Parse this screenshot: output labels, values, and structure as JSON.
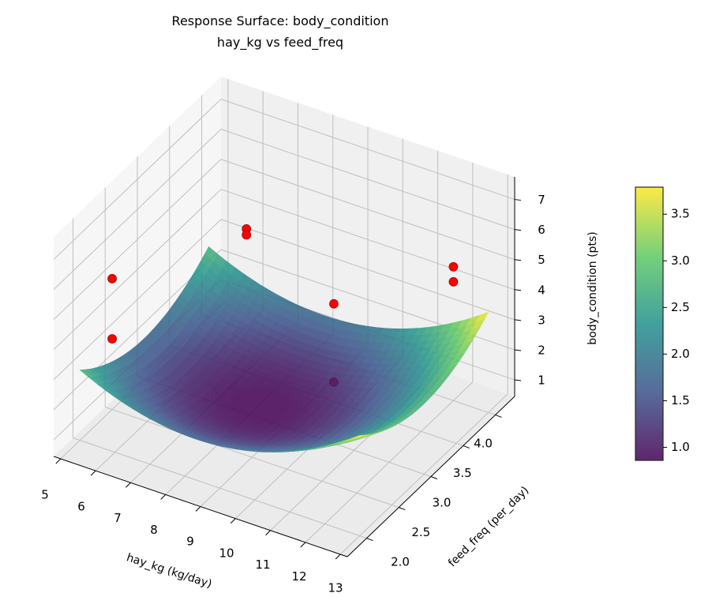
{
  "chart_data": {
    "type": "surface3d",
    "title": "Response Surface: body_condition",
    "subtitle": "hay_kg vs feed_freq",
    "xlabel": "hay_kg (kg/day)",
    "ylabel": "feed_freq (per_day)",
    "zlabel": "body_condition (pts)",
    "xlim": [
      4.8,
      13.2
    ],
    "ylim": [
      1.7,
      4.3
    ],
    "zlim": [
      0.45,
      7.75
    ],
    "x_ticks": [
      "5",
      "6",
      "7",
      "8",
      "9",
      "10",
      "11",
      "12",
      "13"
    ],
    "y_ticks": [
      "2.0",
      "2.5",
      "3.0",
      "3.5",
      "4.0"
    ],
    "z_ticks": [
      "1",
      "2",
      "3",
      "4",
      "5",
      "6",
      "7"
    ],
    "grid": true,
    "surface": {
      "x_range": [
        5,
        13
      ],
      "y_range": [
        2,
        4
      ],
      "colormap": "viridis",
      "min": 0.85,
      "max": 3.78
    },
    "colorbar": {
      "ticks": [
        "1.0",
        "1.5",
        "2.0",
        "2.5",
        "3.0",
        "3.5"
      ],
      "range": [
        0.86,
        3.79
      ]
    },
    "points": [
      {
        "x": 5,
        "y": 2.5,
        "z": 4.8
      },
      {
        "x": 5,
        "y": 2.5,
        "z": 2.8
      },
      {
        "x": 7,
        "y": 3.5,
        "z": 5.2
      },
      {
        "x": 7,
        "y": 3.5,
        "z": 5.0
      },
      {
        "x": 9.5,
        "y": 3.5,
        "z": 3.7
      },
      {
        "x": 9.5,
        "y": 3.5,
        "z": 1.1
      },
      {
        "x": 12,
        "y": 4,
        "z": 4.9
      },
      {
        "x": 12,
        "y": 4,
        "z": 4.4
      }
    ],
    "point_color": "#ff0000"
  }
}
